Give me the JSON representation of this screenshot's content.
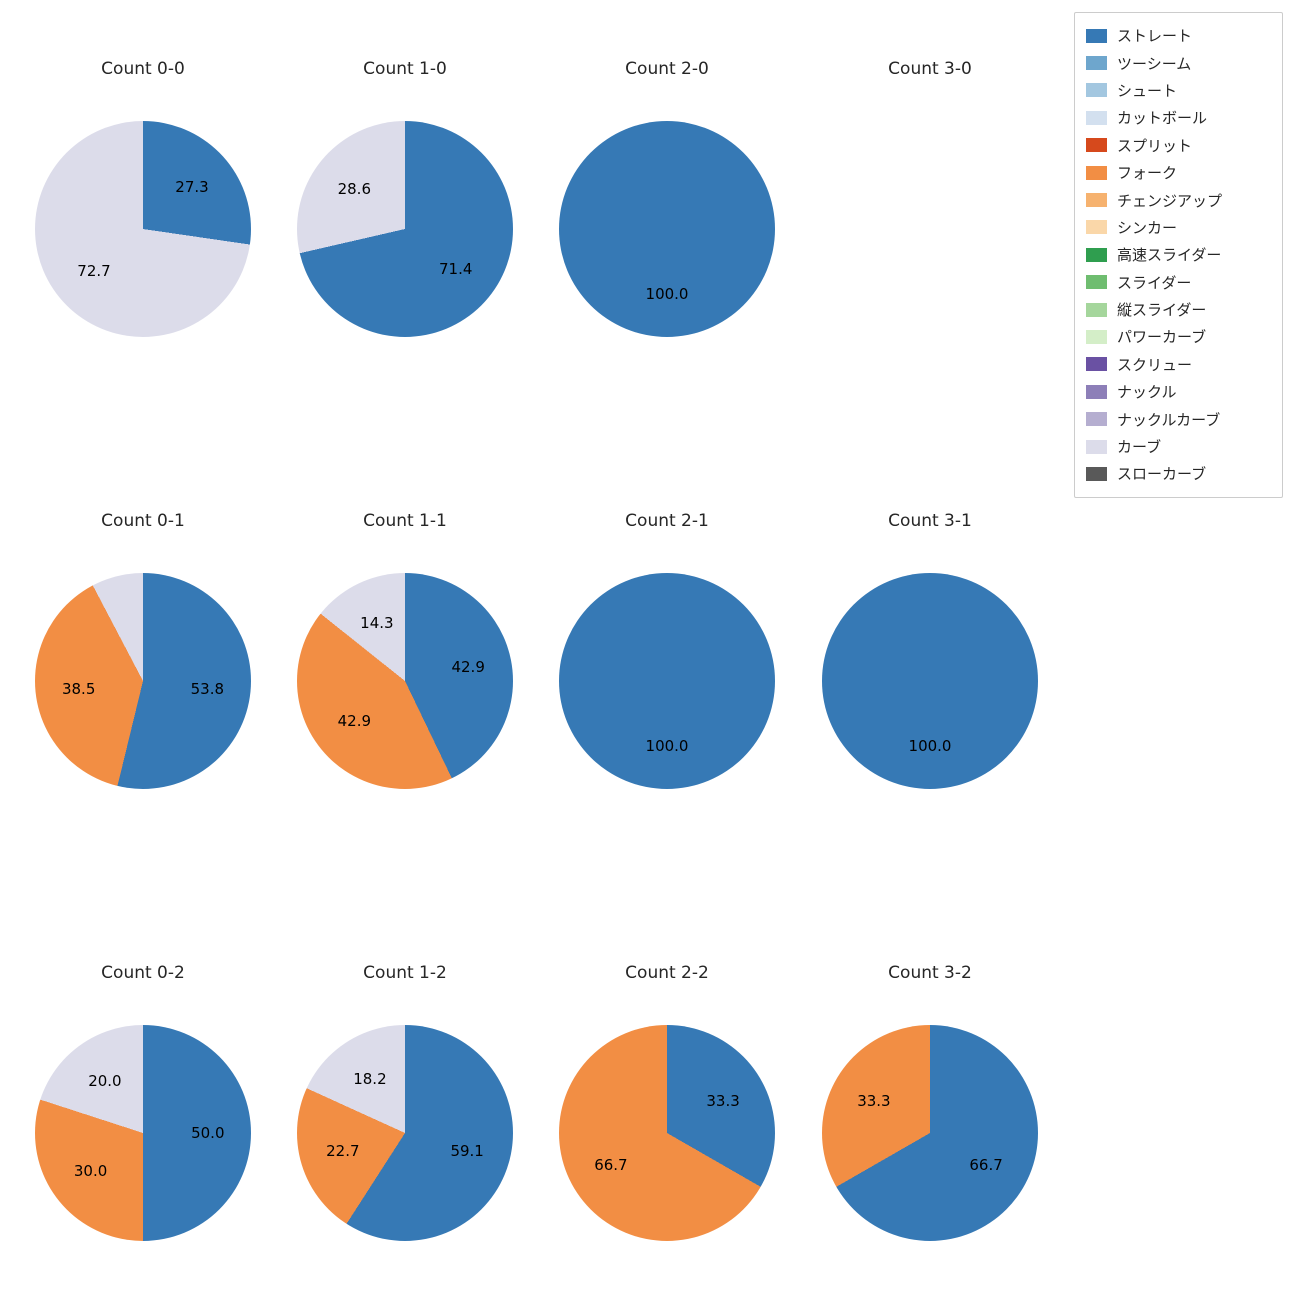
{
  "background_color": "#ffffff",
  "legend": {
    "items": [
      {
        "label": "ストレート",
        "color": "#3679b5"
      },
      {
        "label": "ツーシーム",
        "color": "#6ea6cd"
      },
      {
        "label": "シュート",
        "color": "#a3c7e0"
      },
      {
        "label": "カットボール",
        "color": "#d3e0ef"
      },
      {
        "label": "スプリット",
        "color": "#d6491c"
      },
      {
        "label": "フォーク",
        "color": "#f28e44"
      },
      {
        "label": "チェンジアップ",
        "color": "#f6b26f"
      },
      {
        "label": "シンカー",
        "color": "#fad7a9"
      },
      {
        "label": "高速スライダー",
        "color": "#2f9e4f"
      },
      {
        "label": "スライダー",
        "color": "#6fbd70"
      },
      {
        "label": "縦スライダー",
        "color": "#a5d69c"
      },
      {
        "label": "パワーカーブ",
        "color": "#d4eec8"
      },
      {
        "label": "スクリュー",
        "color": "#6a51a3"
      },
      {
        "label": "ナックル",
        "color": "#8d7fb8"
      },
      {
        "label": "ナックルカーブ",
        "color": "#b5aed0"
      },
      {
        "label": "カーブ",
        "color": "#dcdcea"
      },
      {
        "label": "スローカーブ",
        "color": "#595959"
      }
    ]
  },
  "chart_data": {
    "type": "pie",
    "direction": "clockwise",
    "start_angle_deg": 0,
    "grid": {
      "columns": 4,
      "rows": 3
    },
    "charts": [
      {
        "title": "Count 0-0",
        "slices": [
          {
            "name": "ストレート",
            "value": 27.3,
            "color": "#3679b5",
            "label": "27.3"
          },
          {
            "name": "カーブ",
            "value": 72.7,
            "color": "#dcdcea",
            "label": "72.7"
          }
        ]
      },
      {
        "title": "Count 1-0",
        "slices": [
          {
            "name": "ストレート",
            "value": 71.4,
            "color": "#3679b5",
            "label": "71.4"
          },
          {
            "name": "カーブ",
            "value": 28.6,
            "color": "#dcdcea",
            "label": "28.6"
          }
        ]
      },
      {
        "title": "Count 2-0",
        "slices": [
          {
            "name": "ストレート",
            "value": 100.0,
            "color": "#3679b5",
            "label": "100.0"
          }
        ]
      },
      {
        "title": "Count 3-0",
        "slices": []
      },
      {
        "title": "Count 0-1",
        "slices": [
          {
            "name": "ストレート",
            "value": 53.8,
            "color": "#3679b5",
            "label": "53.8"
          },
          {
            "name": "フォーク",
            "value": 38.5,
            "color": "#f28e44",
            "label": "38.5"
          },
          {
            "name": "カーブ",
            "value": 7.7,
            "color": "#dcdcea",
            "label": ""
          }
        ]
      },
      {
        "title": "Count 1-1",
        "slices": [
          {
            "name": "ストレート",
            "value": 42.9,
            "color": "#3679b5",
            "label": "42.9"
          },
          {
            "name": "フォーク",
            "value": 42.9,
            "color": "#f28e44",
            "label": "42.9"
          },
          {
            "name": "カーブ",
            "value": 14.3,
            "color": "#dcdcea",
            "label": "14.3"
          }
        ]
      },
      {
        "title": "Count 2-1",
        "slices": [
          {
            "name": "ストレート",
            "value": 100.0,
            "color": "#3679b5",
            "label": "100.0"
          }
        ]
      },
      {
        "title": "Count 3-1",
        "slices": [
          {
            "name": "ストレート",
            "value": 100.0,
            "color": "#3679b5",
            "label": "100.0"
          }
        ]
      },
      {
        "title": "Count 0-2",
        "slices": [
          {
            "name": "ストレート",
            "value": 50.0,
            "color": "#3679b5",
            "label": "50.0"
          },
          {
            "name": "フォーク",
            "value": 30.0,
            "color": "#f28e44",
            "label": "30.0"
          },
          {
            "name": "カーブ",
            "value": 20.0,
            "color": "#dcdcea",
            "label": "20.0"
          }
        ]
      },
      {
        "title": "Count 1-2",
        "slices": [
          {
            "name": "ストレート",
            "value": 59.1,
            "color": "#3679b5",
            "label": "59.1"
          },
          {
            "name": "フォーク",
            "value": 22.7,
            "color": "#f28e44",
            "label": "22.7"
          },
          {
            "name": "カーブ",
            "value": 18.2,
            "color": "#dcdcea",
            "label": "18.2"
          }
        ]
      },
      {
        "title": "Count 2-2",
        "slices": [
          {
            "name": "ストレート",
            "value": 33.3,
            "color": "#3679b5",
            "label": "33.3"
          },
          {
            "name": "フォーク",
            "value": 66.7,
            "color": "#f28e44",
            "label": "66.7"
          }
        ]
      },
      {
        "title": "Count 3-2",
        "slices": [
          {
            "name": "ストレート",
            "value": 66.7,
            "color": "#3679b5",
            "label": "66.7"
          },
          {
            "name": "フォーク",
            "value": 33.3,
            "color": "#f28e44",
            "label": "33.3"
          }
        ]
      }
    ]
  }
}
